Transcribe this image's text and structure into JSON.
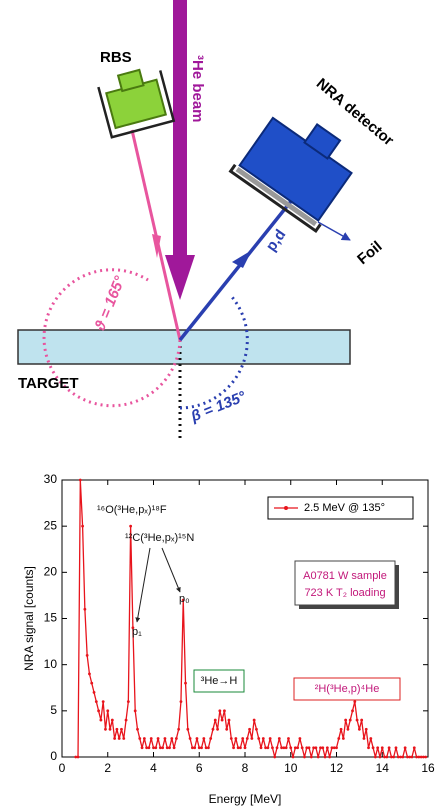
{
  "diagram": {
    "rbs": "RBS",
    "beam": "³He beam",
    "nra_detector": "NRA detector",
    "foil": "Foil",
    "particles": "p,d",
    "theta": "ϑ = 165°",
    "beta": "β = 135°",
    "target": "TARGET"
  },
  "chart_data": {
    "type": "line",
    "xlabel": "Energy [MeV]",
    "ylabel": "NRA signal [counts]",
    "xlim": [
      0,
      16
    ],
    "xticks": [
      0,
      2,
      4,
      6,
      8,
      10,
      12,
      14,
      16
    ],
    "ylim": [
      0,
      30
    ],
    "yticks": [
      0,
      5,
      10,
      15,
      20,
      25,
      30
    ],
    "legend": "upper right",
    "annotations": [
      "¹⁶O(³He,pₓ)¹⁸F",
      "¹²C(³He,pₓ)¹⁵N",
      "p₁",
      "p₀",
      "A0781 W sample",
      "723 K T₂ loading",
      "³He→H",
      "²H(³He,p)⁴He"
    ],
    "x": [
      0.6,
      0.7,
      0.8,
      0.9,
      1.0,
      1.1,
      1.2,
      1.3,
      1.4,
      1.5,
      1.6,
      1.7,
      1.8,
      1.9,
      2.0,
      2.1,
      2.2,
      2.3,
      2.4,
      2.5,
      2.6,
      2.7,
      2.8,
      2.9,
      3.0,
      3.1,
      3.2,
      3.3,
      3.4,
      3.5,
      3.6,
      3.7,
      3.8,
      3.9,
      4.0,
      4.1,
      4.2,
      4.3,
      4.4,
      4.5,
      4.6,
      4.7,
      4.8,
      4.9,
      5.0,
      5.1,
      5.2,
      5.3,
      5.4,
      5.5,
      5.6,
      5.7,
      5.8,
      5.9,
      6.0,
      6.1,
      6.2,
      6.3,
      6.4,
      6.5,
      6.6,
      6.7,
      6.8,
      6.9,
      7.0,
      7.1,
      7.2,
      7.3,
      7.4,
      7.5,
      7.6,
      7.7,
      7.8,
      7.9,
      8.0,
      8.1,
      8.2,
      8.3,
      8.4,
      8.5,
      8.6,
      8.7,
      8.8,
      8.9,
      9.0,
      9.1,
      9.2,
      9.3,
      9.4,
      9.5,
      9.6,
      9.7,
      9.8,
      9.9,
      10.0,
      10.1,
      10.2,
      10.3,
      10.4,
      10.5,
      10.6,
      10.7,
      10.8,
      10.9,
      11.0,
      11.1,
      11.2,
      11.3,
      11.4,
      11.5,
      11.6,
      11.7,
      11.8,
      11.9,
      12.0,
      12.1,
      12.2,
      12.3,
      12.4,
      12.5,
      12.6,
      12.7,
      12.8,
      12.9,
      13.0,
      13.1,
      13.2,
      13.3,
      13.4,
      13.5,
      13.6,
      13.7,
      13.8,
      13.9,
      14.0,
      14.1,
      14.2,
      14.3,
      14.4,
      14.5,
      14.6,
      14.7,
      14.8,
      14.9,
      15.0,
      15.1,
      15.2,
      15.3,
      15.4,
      15.5,
      15.6,
      15.7,
      15.8,
      15.9
    ],
    "series": [
      {
        "name": "2.5 MeV @ 135°",
        "color": "#e8141c",
        "values": [
          0,
          0,
          30,
          25,
          16,
          11,
          9,
          8,
          7,
          6,
          5,
          4,
          6,
          3,
          5,
          3,
          4,
          2,
          3,
          2,
          3,
          2,
          4,
          6,
          25,
          14,
          5,
          3,
          2,
          1,
          2,
          1,
          1,
          2,
          1,
          1,
          2,
          1,
          1,
          2,
          1,
          1,
          2,
          1,
          2,
          3,
          6,
          17,
          8,
          3,
          2,
          1,
          1,
          2,
          1,
          1,
          2,
          1,
          1,
          2,
          3,
          4,
          3,
          5,
          4,
          5,
          3,
          4,
          2,
          1,
          2,
          1,
          1,
          2,
          1,
          2,
          3,
          2,
          4,
          3,
          2,
          1,
          2,
          1,
          1,
          2,
          1,
          0,
          1,
          2,
          1,
          1,
          1,
          2,
          1,
          0,
          1,
          1,
          2,
          1,
          0,
          1,
          1,
          0,
          1,
          1,
          0,
          1,
          1,
          0,
          1,
          0,
          1,
          1,
          1,
          2,
          3,
          2,
          4,
          3,
          4,
          5,
          6,
          4,
          3,
          4,
          2,
          3,
          1,
          2,
          1,
          0,
          1,
          0,
          1,
          0,
          0,
          1,
          0,
          0,
          1,
          0,
          0,
          0,
          1,
          0,
          0,
          0,
          1,
          0,
          0,
          0,
          0,
          0
        ]
      }
    ]
  }
}
